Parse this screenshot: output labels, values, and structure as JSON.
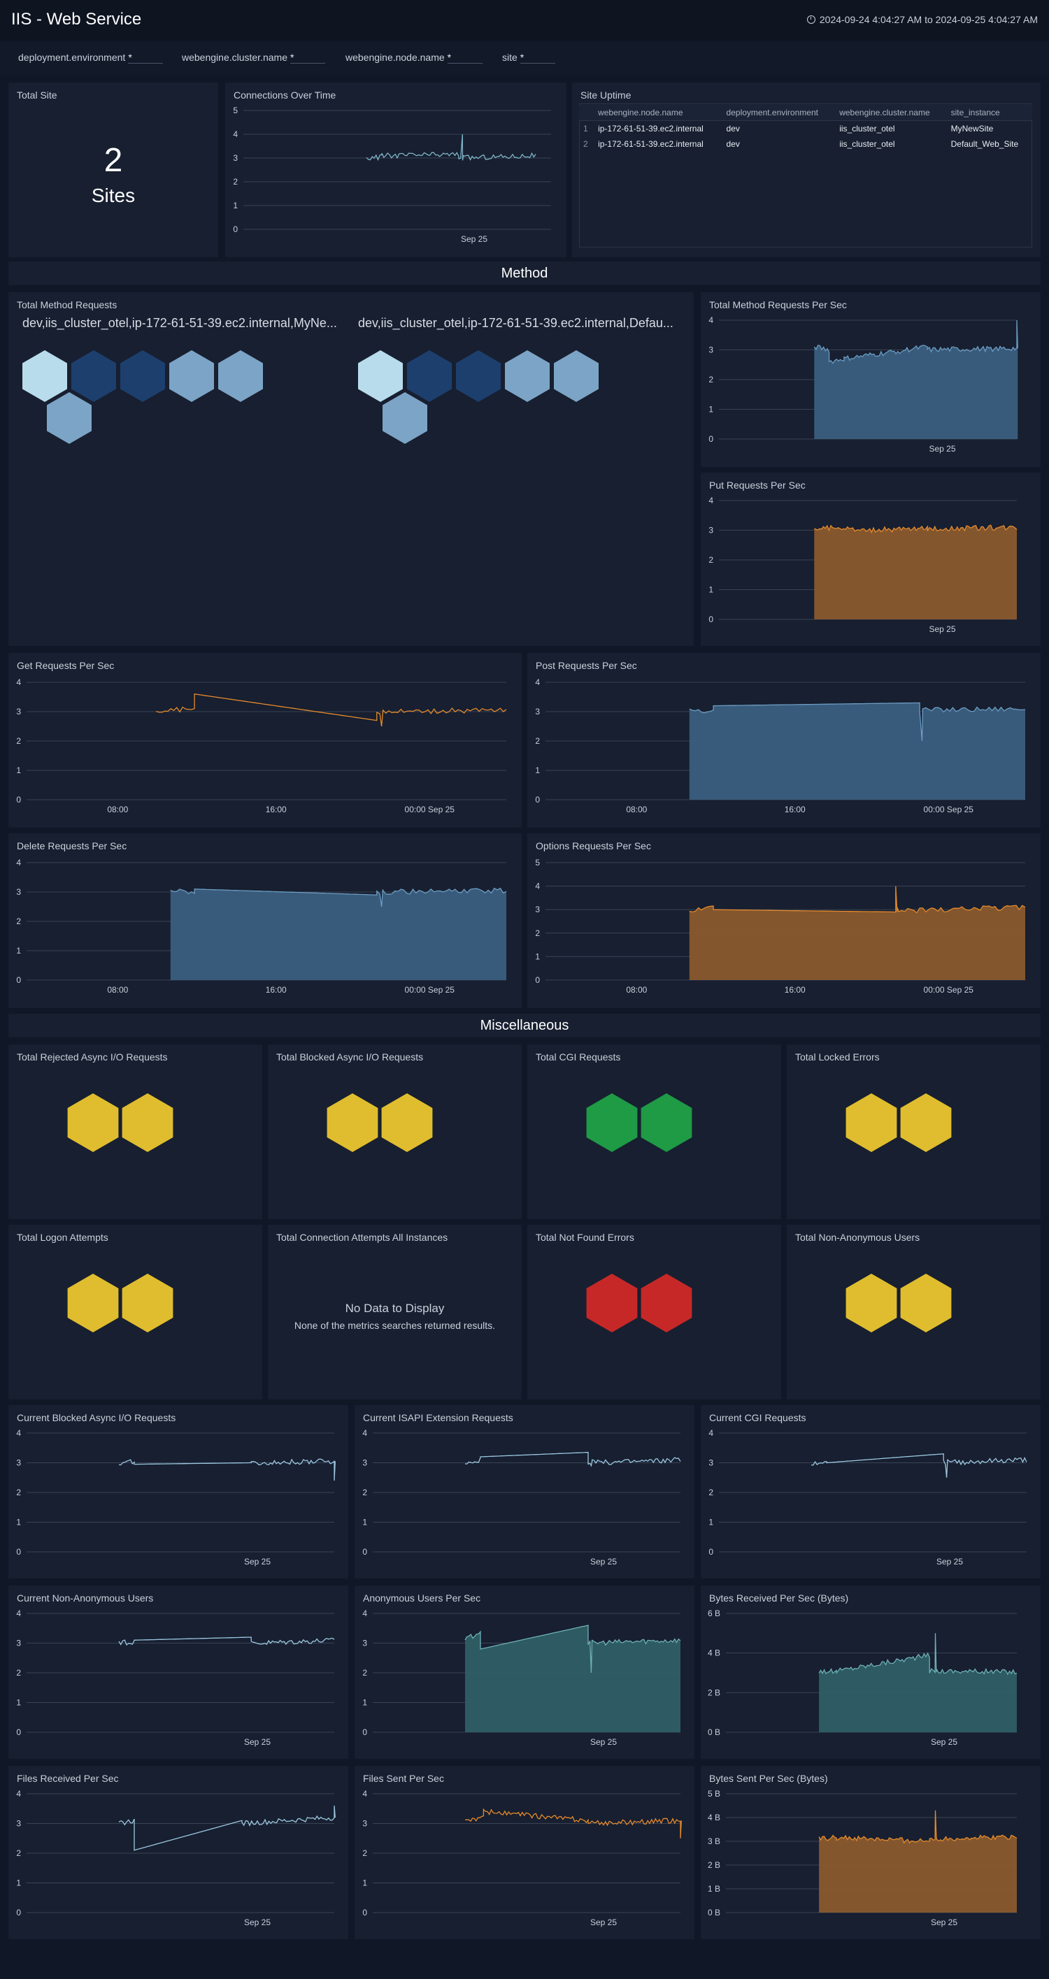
{
  "app": {
    "title": "IIS - Web Service",
    "time_range": "2024-09-24 4:04:27 AM to 2024-09-25 4:04:27 AM"
  },
  "filters": [
    {
      "label": "deployment.environment",
      "value": "*"
    },
    {
      "label": "webengine.cluster.name",
      "value": "*"
    },
    {
      "label": "webengine.node.name",
      "value": "*"
    },
    {
      "label": "site",
      "value": "*"
    }
  ],
  "total_site": {
    "title": "Total Site",
    "value": "2",
    "unit": "Sites"
  },
  "site_uptime": {
    "title": "Site Uptime",
    "columns": [
      "webengine.node.name",
      "deployment.environment",
      "webengine.cluster.name",
      "site_instance"
    ],
    "rows": [
      [
        "1",
        "ip-172-61-51-39.ec2.internal",
        "dev",
        "iis_cluster_otel",
        "MyNewSite"
      ],
      [
        "2",
        "ip-172-61-51-39.ec2.internal",
        "dev",
        "iis_cluster_otel",
        "Default_Web_Site"
      ]
    ]
  },
  "sections": {
    "method": "Method",
    "misc": "Miscellaneous"
  },
  "method_requests": {
    "title": "Total Method Requests",
    "groups": [
      {
        "label": "dev,iis_cluster_otel,ip-172-61-51-39.ec2.internal,MyNe...",
        "colors": [
          "#b9dcec",
          "#1d3f6e",
          "#1d3f6e",
          "#7ca4c6",
          "#7ca4c6",
          "#7ca4c6"
        ]
      },
      {
        "label": "dev,iis_cluster_otel,ip-172-61-51-39.ec2.internal,Defau...",
        "colors": [
          "#b9dcec",
          "#1d3f6e",
          "#1d3f6e",
          "#7ca4c6",
          "#7ca4c6",
          "#7ca4c6"
        ]
      }
    ]
  },
  "honeycombs": [
    {
      "title": "Total Rejected Async I/O Requests",
      "color": "#e0bd2e",
      "count": 2
    },
    {
      "title": "Total Blocked Async I/O Requests",
      "color": "#e0bd2e",
      "count": 2
    },
    {
      "title": "Total CGI Requests",
      "color": "#1f9a45",
      "count": 2
    },
    {
      "title": "Total Locked Errors",
      "color": "#e0bd2e",
      "count": 2
    },
    {
      "title": "Total Logon Attempts",
      "color": "#e0bd2e",
      "count": 2
    },
    {
      "title": "Total Connection Attempts All Instances",
      "color": "",
      "count": 0,
      "no_data": "No Data to Display",
      "no_data_sub": "None of the metrics searches returned results."
    },
    {
      "title": "Total Not Found Errors",
      "color": "#c62828",
      "count": 2
    },
    {
      "title": "Total Non-Anonymous Users",
      "color": "#e0bd2e",
      "count": 2
    }
  ],
  "chart_data": [
    {
      "id": "connections",
      "title": "Connections Over Time",
      "type": "line",
      "color": "#7fb3c8",
      "yticks": [
        "0",
        "1",
        "2",
        "3",
        "4",
        "5"
      ],
      "ylim": [
        0,
        5
      ],
      "xticks": [
        {
          "label": "Sep 25",
          "x": 0.75
        }
      ],
      "segments": [
        [
          0.4,
          0.45,
          3.0,
          3.05
        ],
        [
          0.45,
          0.7,
          3.1,
          3.15
        ],
        [
          0.7,
          0.95,
          3.0,
          3.1
        ]
      ],
      "spike": [
        0.712,
        4.0
      ]
    },
    {
      "id": "method_per_sec",
      "title": "Total Method Requests Per Sec",
      "type": "area",
      "color": "#6c9cc3",
      "fill": "#3b5f80",
      "yticks": [
        "0",
        "1",
        "2",
        "3",
        "4"
      ],
      "ylim": [
        0,
        4
      ],
      "xticks": [
        {
          "label": "Sep 25",
          "x": 0.75
        }
      ],
      "segments": [
        [
          0.32,
          0.37,
          3.1,
          3.0
        ],
        [
          0.37,
          0.42,
          2.6,
          2.7
        ],
        [
          0.42,
          0.7,
          2.7,
          3.1
        ],
        [
          0.7,
          1.0,
          3.0,
          3.05
        ]
      ],
      "spike": [
        1.0,
        4.0
      ]
    },
    {
      "id": "put_per_sec",
      "title": "Put Requests Per Sec",
      "type": "area",
      "color": "#e58a2c",
      "fill": "#8a5a2d",
      "yticks": [
        "0",
        "1",
        "2",
        "3",
        "4"
      ],
      "ylim": [
        0,
        4
      ],
      "xticks": [
        {
          "label": "Sep 25",
          "x": 0.75
        }
      ],
      "segments": [
        [
          0.32,
          0.45,
          3.05,
          3.1
        ],
        [
          0.45,
          0.7,
          3.0,
          3.05
        ],
        [
          0.7,
          1.0,
          3.05,
          3.1
        ]
      ],
      "spike": null
    },
    {
      "id": "get_per_sec",
      "title": "Get Requests Per Sec",
      "type": "line",
      "color": "#e58a2c",
      "yticks": [
        "0",
        "1",
        "2",
        "3",
        "4"
      ],
      "ylim": [
        0,
        4
      ],
      "xticks": [
        {
          "label": "08:00",
          "x": 0.19
        },
        {
          "label": "16:00",
          "x": 0.52
        },
        {
          "label": "00:00 Sep 25",
          "x": 0.84
        }
      ],
      "segments": [
        [
          0.27,
          0.35,
          3.0,
          3.1
        ],
        [
          0.35,
          0.73,
          3.6,
          2.7
        ],
        [
          0.73,
          1.0,
          3.0,
          3.05
        ]
      ],
      "spike": [
        0.74,
        2.5
      ]
    },
    {
      "id": "post_per_sec",
      "title": "Post Requests Per Sec",
      "type": "area",
      "color": "#6c9cc3",
      "fill": "#3b5f80",
      "yticks": [
        "0",
        "1",
        "2",
        "3",
        "4"
      ],
      "ylim": [
        0,
        4
      ],
      "xticks": [
        {
          "label": "08:00",
          "x": 0.19
        },
        {
          "label": "16:00",
          "x": 0.52
        },
        {
          "label": "00:00 Sep 25",
          "x": 0.84
        }
      ],
      "segments": [
        [
          0.3,
          0.35,
          3.1,
          3.0
        ],
        [
          0.35,
          0.78,
          3.2,
          3.3
        ],
        [
          0.78,
          1.0,
          3.05,
          3.1
        ]
      ],
      "spike": [
        0.785,
        2.0
      ]
    },
    {
      "id": "delete_per_sec",
      "title": "Delete Requests Per Sec",
      "type": "area",
      "color": "#6c9cc3",
      "fill": "#3b5f80",
      "yticks": [
        "0",
        "1",
        "2",
        "3",
        "4"
      ],
      "ylim": [
        0,
        4
      ],
      "xticks": [
        {
          "label": "08:00",
          "x": 0.19
        },
        {
          "label": "16:00",
          "x": 0.52
        },
        {
          "label": "00:00 Sep 25",
          "x": 0.84
        }
      ],
      "segments": [
        [
          0.3,
          0.35,
          3.1,
          3.0
        ],
        [
          0.35,
          0.73,
          3.1,
          2.9
        ],
        [
          0.73,
          1.0,
          3.0,
          3.05
        ]
      ],
      "spike": [
        0.74,
        2.5
      ]
    },
    {
      "id": "options_per_sec",
      "title": "Options Requests Per Sec",
      "type": "area",
      "color": "#e58a2c",
      "fill": "#8a5a2d",
      "yticks": [
        "0",
        "1",
        "2",
        "3",
        "4",
        "5"
      ],
      "ylim": [
        0,
        5
      ],
      "xticks": [
        {
          "label": "08:00",
          "x": 0.19
        },
        {
          "label": "16:00",
          "x": 0.52
        },
        {
          "label": "00:00 Sep 25",
          "x": 0.84
        }
      ],
      "segments": [
        [
          0.3,
          0.35,
          3.0,
          3.05
        ],
        [
          0.35,
          0.73,
          3.0,
          2.9
        ],
        [
          0.73,
          1.0,
          2.95,
          3.1
        ]
      ],
      "spike": [
        0.73,
        4.0
      ]
    },
    {
      "id": "cur_blocked",
      "title": "Current Blocked Async I/O Requests",
      "type": "line",
      "color": "#9cc7e0",
      "yticks": [
        "0",
        "1",
        "2",
        "3",
        "4"
      ],
      "ylim": [
        0,
        4
      ],
      "xticks": [
        {
          "label": "Sep 25",
          "x": 0.75
        }
      ],
      "segments": [
        [
          0.3,
          0.35,
          3.0,
          3.05
        ],
        [
          0.35,
          0.73,
          2.95,
          3.0
        ],
        [
          0.73,
          1.0,
          3.0,
          3.05
        ]
      ],
      "spike": [
        1.0,
        2.4
      ]
    },
    {
      "id": "cur_isapi",
      "title": "Current ISAPI Extension Requests",
      "type": "line",
      "color": "#9cc7e0",
      "yticks": [
        "0",
        "1",
        "2",
        "3",
        "4"
      ],
      "ylim": [
        0,
        4
      ],
      "xticks": [
        {
          "label": "Sep 25",
          "x": 0.75
        }
      ],
      "segments": [
        [
          0.3,
          0.35,
          3.0,
          3.1
        ],
        [
          0.35,
          0.7,
          3.2,
          3.35
        ],
        [
          0.7,
          1.0,
          3.0,
          3.1
        ]
      ],
      "spike": [
        0.71,
        2.9
      ]
    },
    {
      "id": "cur_cgi",
      "title": "Current CGI Requests",
      "type": "line",
      "color": "#9cc7e0",
      "yticks": [
        "0",
        "1",
        "2",
        "3",
        "4"
      ],
      "ylim": [
        0,
        4
      ],
      "xticks": [
        {
          "label": "Sep 25",
          "x": 0.75
        }
      ],
      "segments": [
        [
          0.3,
          0.35,
          3.0,
          3.05
        ],
        [
          0.35,
          0.73,
          3.0,
          3.3
        ],
        [
          0.73,
          1.0,
          3.0,
          3.1
        ]
      ],
      "spike": [
        0.74,
        2.5
      ]
    },
    {
      "id": "cur_nonanon",
      "title": "Current Non-Anonymous Users",
      "type": "line",
      "color": "#9cc7e0",
      "yticks": [
        "0",
        "1",
        "2",
        "3",
        "4"
      ],
      "ylim": [
        0,
        4
      ],
      "xticks": [
        {
          "label": "Sep 25",
          "x": 0.75
        }
      ],
      "segments": [
        [
          0.3,
          0.35,
          3.0,
          3.05
        ],
        [
          0.35,
          0.73,
          3.1,
          3.2
        ],
        [
          0.73,
          1.0,
          3.0,
          3.1
        ]
      ],
      "spike": null
    },
    {
      "id": "anon_per_sec",
      "title": "Anonymous Users Per Sec",
      "type": "area",
      "color": "#6fb0b8",
      "fill": "#2f5f66",
      "yticks": [
        "0",
        "1",
        "2",
        "3",
        "4"
      ],
      "ylim": [
        0,
        4
      ],
      "xticks": [
        {
          "label": "Sep 25",
          "x": 0.75
        }
      ],
      "segments": [
        [
          0.3,
          0.35,
          3.1,
          3.4
        ],
        [
          0.35,
          0.7,
          2.8,
          3.6
        ],
        [
          0.7,
          1.0,
          3.0,
          3.1
        ]
      ],
      "spike": [
        0.71,
        2.0
      ]
    },
    {
      "id": "bytes_recv",
      "title": "Bytes Received Per Sec (Bytes)",
      "type": "area",
      "color": "#6fb0b8",
      "fill": "#2f5f66",
      "yticks": [
        "0 B",
        "2 B",
        "4 B",
        "6 B"
      ],
      "ylim": [
        0,
        6
      ],
      "xticks": [
        {
          "label": "Sep 25",
          "x": 0.75
        }
      ],
      "segments": [
        [
          0.32,
          0.38,
          3.1,
          3.05
        ],
        [
          0.38,
          0.7,
          3.1,
          3.9
        ],
        [
          0.7,
          1.0,
          3.1,
          3.05
        ]
      ],
      "spike": [
        0.72,
        5.0
      ]
    },
    {
      "id": "files_recv",
      "title": "Files Received Per Sec",
      "type": "line",
      "color": "#9cc7e0",
      "yticks": [
        "0",
        "1",
        "2",
        "3",
        "4"
      ],
      "ylim": [
        0,
        4
      ],
      "xticks": [
        {
          "label": "Sep 25",
          "x": 0.75
        }
      ],
      "segments": [
        [
          0.3,
          0.35,
          3.0,
          3.1
        ],
        [
          0.35,
          0.7,
          2.1,
          3.1
        ],
        [
          0.7,
          1.0,
          3.0,
          3.2
        ]
      ],
      "spike": [
        1.0,
        3.6
      ]
    },
    {
      "id": "files_sent",
      "title": "Files Sent Per Sec",
      "type": "line",
      "color": "#e58a2c",
      "yticks": [
        "0",
        "1",
        "2",
        "3",
        "4"
      ],
      "ylim": [
        0,
        4
      ],
      "xticks": [
        {
          "label": "Sep 25",
          "x": 0.75
        }
      ],
      "segments": [
        [
          0.3,
          0.36,
          3.1,
          3.2
        ],
        [
          0.36,
          0.7,
          3.4,
          3.1
        ],
        [
          0.7,
          1.0,
          3.0,
          3.1
        ]
      ],
      "spike": [
        1.0,
        2.5
      ]
    },
    {
      "id": "bytes_sent",
      "title": "Bytes Sent Per Sec (Bytes)",
      "type": "area",
      "color": "#e58a2c",
      "fill": "#8a5a2d",
      "yticks": [
        "0 B",
        "1 B",
        "2 B",
        "3 B",
        "4 B",
        "5 B"
      ],
      "ylim": [
        0,
        5
      ],
      "xticks": [
        {
          "label": "Sep 25",
          "x": 0.75
        }
      ],
      "segments": [
        [
          0.32,
          0.38,
          3.1,
          3.15
        ],
        [
          0.38,
          0.7,
          3.15,
          3.0
        ],
        [
          0.7,
          1.0,
          3.1,
          3.2
        ]
      ],
      "spike": [
        0.72,
        4.3
      ]
    }
  ]
}
